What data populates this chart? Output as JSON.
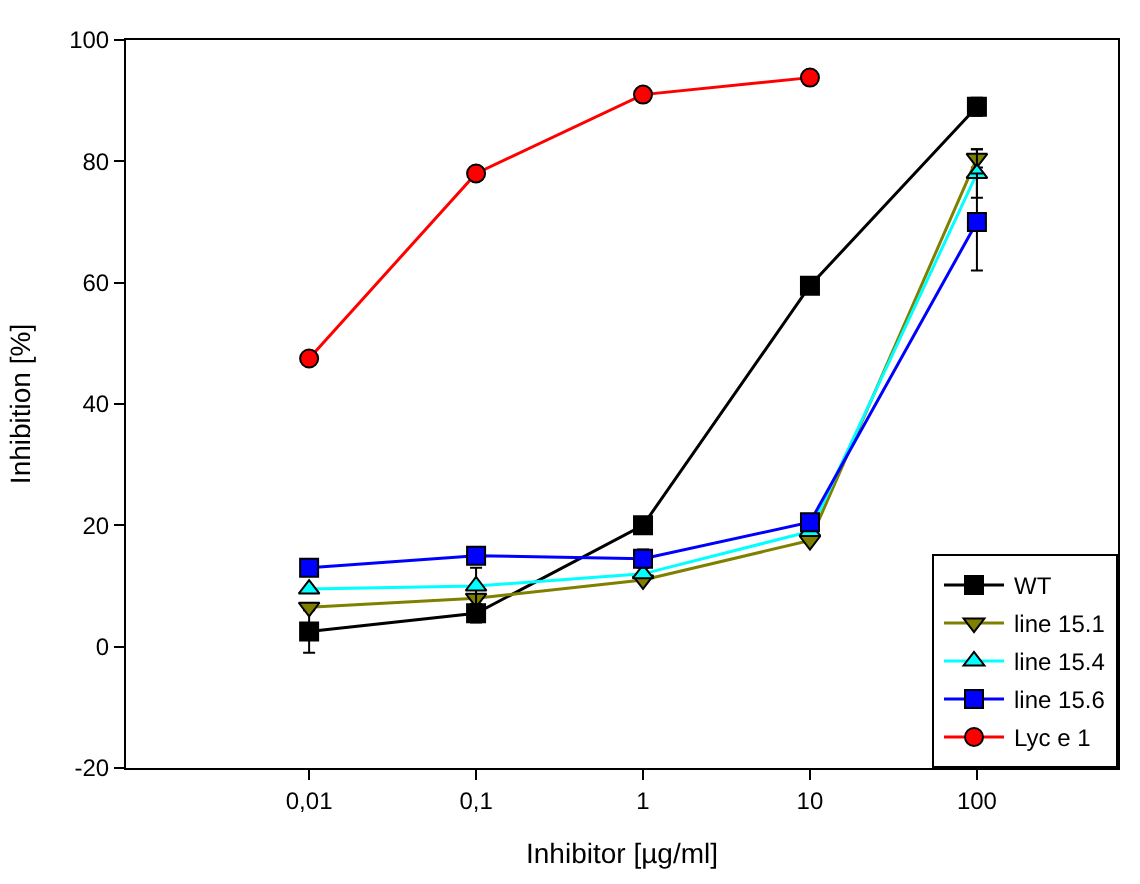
{
  "chart_data": {
    "type": "line",
    "xlabel": "Inhibitor [µg/ml]",
    "ylabel": "Inhibition [%]",
    "log": "x",
    "x": [
      0.01,
      0.1,
      1,
      10,
      100
    ],
    "xlim": [
      0.0008,
      700
    ],
    "xticks": [
      {
        "value": 0.01,
        "label": "0,01"
      },
      {
        "value": 0.1,
        "label": "0,1"
      },
      {
        "value": 1,
        "label": "1"
      },
      {
        "value": 10,
        "label": "10"
      },
      {
        "value": 100,
        "label": "100"
      }
    ],
    "ylim": [
      -20,
      100
    ],
    "yticks": [
      -20,
      0,
      20,
      40,
      60,
      80,
      100
    ],
    "legend": "bottom right",
    "line_style": "solid",
    "series": [
      {
        "name": "WT",
        "color": "#000000",
        "marker": "square",
        "values": [
          2.5,
          5.5,
          20,
          59.5,
          89
        ],
        "errors": [
          3.5,
          1.5,
          null,
          null,
          1.5
        ]
      },
      {
        "name": "line 15.1",
        "color": "#808000",
        "marker": "triangle-down",
        "values": [
          6.5,
          8,
          11,
          17.5,
          80.5
        ],
        "errors": [
          null,
          null,
          null,
          null,
          1.5
        ]
      },
      {
        "name": "line 15.4",
        "color": "#00ffff",
        "marker": "triangle",
        "values": [
          9.5,
          10,
          12,
          19,
          78
        ],
        "errors": [
          null,
          3,
          null,
          null,
          4
        ]
      },
      {
        "name": "line 15.6",
        "color": "#0000ff",
        "marker": "square",
        "values": [
          13,
          15,
          14.5,
          20.5,
          70
        ],
        "errors": [
          null,
          null,
          1.5,
          null,
          8
        ]
      },
      {
        "name": "Lyc e 1",
        "color": "#ff0000",
        "marker": "circle",
        "x": [
          0.01,
          0.1,
          1,
          10
        ],
        "values": [
          47.5,
          78,
          91,
          93.8
        ]
      }
    ]
  }
}
